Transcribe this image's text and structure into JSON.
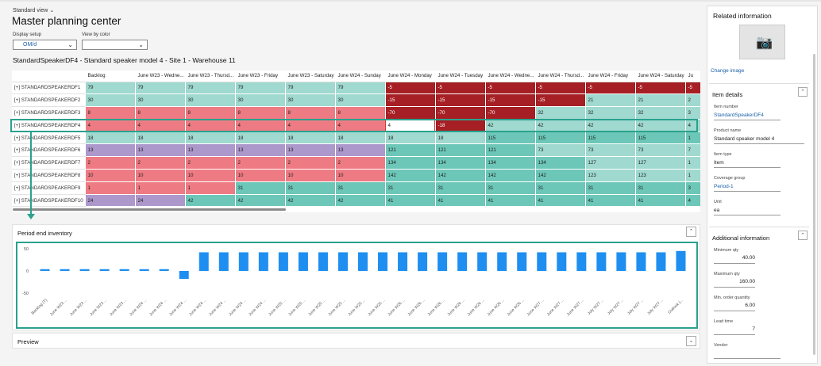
{
  "header": {
    "view": "Standard view",
    "title": "Master planning center"
  },
  "filters": {
    "display_setup_label": "Display setup",
    "display_setup_value": "OM/d",
    "view_by_color_label": "View by color",
    "view_by_color_value": ""
  },
  "item_heading": "StandardSpeakerDF4 - Standard speaker model 4 - Site 1 - Warehouse 11",
  "grid": {
    "columns": [
      "Backlog",
      "June W23 - Wedne...",
      "June W23 - Thursd...",
      "June W23 - Friday",
      "June W23 - Saturday",
      "June W24 - Sunday",
      "June W24 - Monday",
      "June W24 - Tuesday",
      "June W24 - Wedne...",
      "June W24 - Thursd...",
      "June W24 - Friday",
      "June W24 - Saturday",
      "Ju"
    ],
    "rows": [
      {
        "name": "[+] STANDARDSPEAKERDF1",
        "cells": [
          [
            "79",
            "teal"
          ],
          [
            "79",
            "teal"
          ],
          [
            "79",
            "teal"
          ],
          [
            "79",
            "teal"
          ],
          [
            "79",
            "teal"
          ],
          [
            "79",
            "teal"
          ],
          [
            "-5",
            "red"
          ],
          [
            "-5",
            "red"
          ],
          [
            "-5",
            "red"
          ],
          [
            "-5",
            "red"
          ],
          [
            "-5",
            "red"
          ],
          [
            "-5",
            "red"
          ],
          [
            "-5",
            "red"
          ]
        ]
      },
      {
        "name": "[+] STANDARDSPEAKERDF2",
        "cells": [
          [
            "30",
            "teal"
          ],
          [
            "30",
            "teal"
          ],
          [
            "30",
            "teal"
          ],
          [
            "30",
            "teal"
          ],
          [
            "30",
            "teal"
          ],
          [
            "30",
            "teal"
          ],
          [
            "-15",
            "red"
          ],
          [
            "-15",
            "red"
          ],
          [
            "-15",
            "red"
          ],
          [
            "-15",
            "red"
          ],
          [
            "21",
            "teal"
          ],
          [
            "21",
            "teal"
          ],
          [
            "2",
            "teal"
          ]
        ]
      },
      {
        "name": "[+] STANDARDSPEAKERDF3",
        "cells": [
          [
            "8",
            "pink"
          ],
          [
            "8",
            "pink"
          ],
          [
            "8",
            "pink"
          ],
          [
            "8",
            "pink"
          ],
          [
            "8",
            "pink"
          ],
          [
            "8",
            "pink"
          ],
          [
            "-70",
            "red"
          ],
          [
            "-70",
            "red"
          ],
          [
            "-70",
            "red"
          ],
          [
            "32",
            "teal"
          ],
          [
            "32",
            "teal"
          ],
          [
            "32",
            "teal"
          ],
          [
            "3",
            "teal"
          ]
        ]
      },
      {
        "name": "[+] STANDARDSPEAKERDF4",
        "cells": [
          [
            "4",
            "pink"
          ],
          [
            "4",
            "pink"
          ],
          [
            "4",
            "pink"
          ],
          [
            "4",
            "pink"
          ],
          [
            "4",
            "pink"
          ],
          [
            "4",
            "pink"
          ],
          [
            "4",
            "sel"
          ],
          [
            "-18",
            "red"
          ],
          [
            "42",
            "teal"
          ],
          [
            "42",
            "teal"
          ],
          [
            "42",
            "teal"
          ],
          [
            "42",
            "teal"
          ],
          [
            "4",
            "teal"
          ]
        ]
      },
      {
        "name": "[+] STANDARDSPEAKERDF5",
        "cells": [
          [
            "18",
            "teal"
          ],
          [
            "18",
            "teal"
          ],
          [
            "18",
            "teal"
          ],
          [
            "18",
            "teal"
          ],
          [
            "18",
            "teal"
          ],
          [
            "18",
            "teal"
          ],
          [
            "18",
            "teal"
          ],
          [
            "18",
            "teal"
          ],
          [
            "115",
            "teald"
          ],
          [
            "115",
            "teald"
          ],
          [
            "115",
            "teald"
          ],
          [
            "115",
            "teald"
          ],
          [
            "1",
            "teald"
          ]
        ]
      },
      {
        "name": "[+] STANDARDSPEAKERDF6",
        "cells": [
          [
            "13",
            "purple"
          ],
          [
            "13",
            "purple"
          ],
          [
            "13",
            "purple"
          ],
          [
            "13",
            "purple"
          ],
          [
            "13",
            "purple"
          ],
          [
            "13",
            "purple"
          ],
          [
            "121",
            "teald"
          ],
          [
            "121",
            "teald"
          ],
          [
            "121",
            "teald"
          ],
          [
            "73",
            "teal"
          ],
          [
            "73",
            "teal"
          ],
          [
            "73",
            "teal"
          ],
          [
            "7",
            "teal"
          ]
        ]
      },
      {
        "name": "[+] STANDARDSPEAKERDF7",
        "cells": [
          [
            "2",
            "pink"
          ],
          [
            "2",
            "pink"
          ],
          [
            "2",
            "pink"
          ],
          [
            "2",
            "pink"
          ],
          [
            "2",
            "pink"
          ],
          [
            "2",
            "pink"
          ],
          [
            "134",
            "teald"
          ],
          [
            "134",
            "teald"
          ],
          [
            "134",
            "teald"
          ],
          [
            "134",
            "teald"
          ],
          [
            "127",
            "teal"
          ],
          [
            "127",
            "teal"
          ],
          [
            "1",
            "teal"
          ]
        ]
      },
      {
        "name": "[+] STANDARDSPEAKERDF8",
        "cells": [
          [
            "10",
            "pink"
          ],
          [
            "10",
            "pink"
          ],
          [
            "10",
            "pink"
          ],
          [
            "10",
            "pink"
          ],
          [
            "10",
            "pink"
          ],
          [
            "10",
            "pink"
          ],
          [
            "142",
            "teald"
          ],
          [
            "142",
            "teald"
          ],
          [
            "142",
            "teald"
          ],
          [
            "142",
            "teald"
          ],
          [
            "123",
            "teal"
          ],
          [
            "123",
            "teal"
          ],
          [
            "1",
            "teal"
          ]
        ]
      },
      {
        "name": "[+] STANDARDSPEAKERDF9",
        "cells": [
          [
            "1",
            "pink"
          ],
          [
            "1",
            "pink"
          ],
          [
            "1",
            "pink"
          ],
          [
            "31",
            "teald"
          ],
          [
            "31",
            "teald"
          ],
          [
            "31",
            "teald"
          ],
          [
            "31",
            "teald"
          ],
          [
            "31",
            "teald"
          ],
          [
            "31",
            "teald"
          ],
          [
            "31",
            "teald"
          ],
          [
            "31",
            "teald"
          ],
          [
            "31",
            "teald"
          ],
          [
            "3",
            "teald"
          ]
        ]
      },
      {
        "name": "[+] STANDARDSPEAKERDF10",
        "cells": [
          [
            "24",
            "purple"
          ],
          [
            "24",
            "purple"
          ],
          [
            "42",
            "teald"
          ],
          [
            "42",
            "teald"
          ],
          [
            "42",
            "teald"
          ],
          [
            "42",
            "teald"
          ],
          [
            "41",
            "teald"
          ],
          [
            "41",
            "teald"
          ],
          [
            "41",
            "teald"
          ],
          [
            "41",
            "teald"
          ],
          [
            "41",
            "teald"
          ],
          [
            "41",
            "teald"
          ],
          [
            "4",
            "teald"
          ]
        ]
      }
    ]
  },
  "period_panel": {
    "title": "Period end inventory"
  },
  "preview_panel": {
    "title": "Preview"
  },
  "chart_data": {
    "type": "bar",
    "title": "",
    "xlabel": "",
    "ylabel": "",
    "ylim": [
      -50,
      50
    ],
    "yticks": [
      "50",
      "0",
      "-50"
    ],
    "categories": [
      "Backlog (T)",
      "June W23 ...",
      "June W23 ...",
      "June W23 ...",
      "June W23 ...",
      "June W24 ...",
      "June W24 ...",
      "June W24 ...",
      "June W24 ...",
      "June W24 ...",
      "June W24 ...",
      "June W24 ...",
      "June W25 ...",
      "June W25 ...",
      "June W25 ...",
      "June W25 ...",
      "June W25 ...",
      "June W25 ...",
      "June W26 ...",
      "June W26 ...",
      "June W26 ...",
      "June W26 ...",
      "June W26 ...",
      "June W26 ...",
      "June W26 ...",
      "June W27 ...",
      "June W27 ...",
      "June W27 ...",
      "July W27 ...",
      "July W27 ...",
      "July W27 ...",
      "July W27 ...",
      "Outlook (..."
    ],
    "values": [
      4,
      4,
      4,
      4,
      4,
      4,
      4,
      -18,
      42,
      42,
      42,
      42,
      42,
      42,
      42,
      42,
      42,
      42,
      42,
      42,
      42,
      42,
      42,
      42,
      42,
      42,
      42,
      42,
      42,
      42,
      42,
      42,
      45
    ],
    "bar_color": "#1e8ff0"
  },
  "side": {
    "title": "Related information",
    "change_image": "Change image",
    "item_details_title": "Item details",
    "fields": [
      {
        "label": "Item number",
        "value": "StandardSpeakerDF4",
        "link": true
      },
      {
        "label": "Product name",
        "value": "Standard speaker model 4",
        "link": false
      },
      {
        "label": "Item type",
        "value": "Item",
        "link": false
      },
      {
        "label": "Coverage group",
        "value": "Period-1",
        "link": true
      },
      {
        "label": "Unit",
        "value": "ea",
        "link": false
      }
    ],
    "additional_title": "Additional information",
    "additional": [
      {
        "label": "Minimum qty",
        "value": "40.00"
      },
      {
        "label": "Maximum qty",
        "value": "160.00"
      },
      {
        "label": "Min. order quantity",
        "value": "6.00"
      },
      {
        "label": "Lead time",
        "value": "7"
      },
      {
        "label": "Vendor",
        "value": ""
      }
    ]
  }
}
